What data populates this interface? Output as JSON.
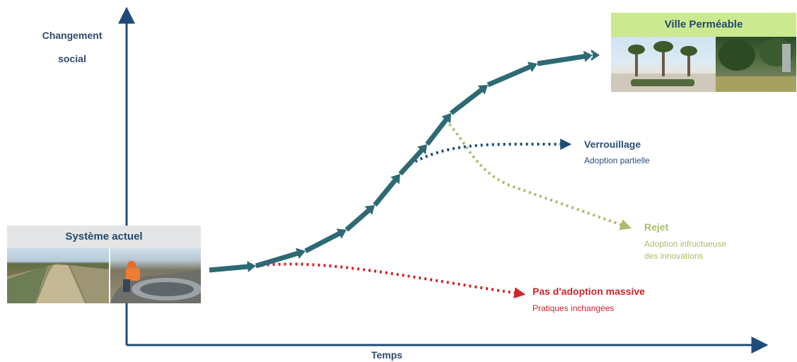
{
  "axes": {
    "y_label": "Changement\nsocial",
    "x_label": "Temps"
  },
  "start": {
    "title": "Système actuel",
    "images": [
      "canal-photo",
      "pipe-worker-photo"
    ]
  },
  "goal": {
    "title": "Ville Perméable",
    "images": [
      "plaza-palm-trees-photo",
      "green-park-photo"
    ]
  },
  "outcomes": [
    {
      "id": "lock",
      "title": "Verrouillage",
      "subtitle": "Adoption partielle",
      "color": "#1f4b78"
    },
    {
      "id": "reject",
      "title": "Rejet",
      "subtitle": "Adoption infructueuse\ndes innovations",
      "color": "#a9bd6c"
    },
    {
      "id": "none",
      "title": "Pas d'adoption massive",
      "subtitle": "Pratiques inchangées",
      "color": "#d2232a"
    }
  ],
  "colors": {
    "axis": "#1f4b78",
    "main_path": "#2e6a74",
    "head_current_bg": "#e4e5e7",
    "head_target_bg": "#cbe98e"
  }
}
